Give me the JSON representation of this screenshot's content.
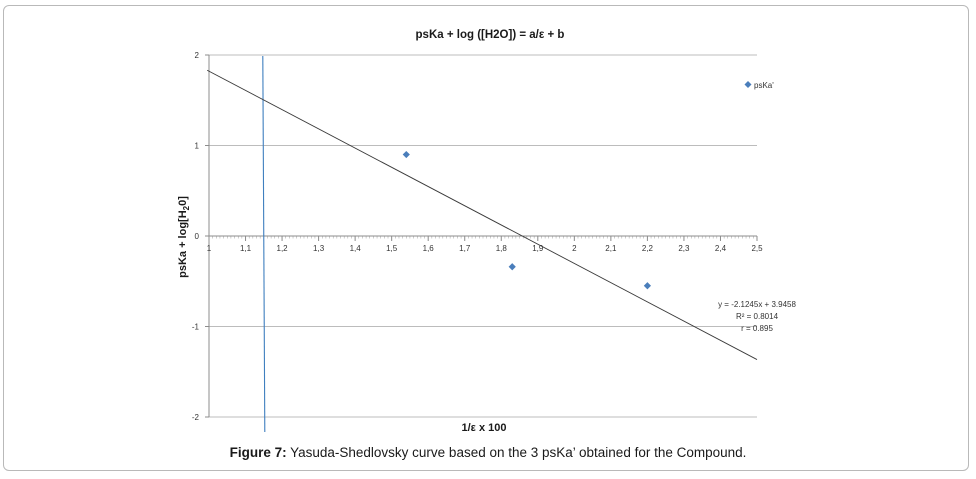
{
  "chart_data": {
    "type": "scatter",
    "title": "psKa + log ([H2O]) = a/ε + b",
    "xlabel": "1/ε x 100",
    "ylabel": "psKa + log[H",
    "ylabel_sub": "2",
    "ylabel_end": "0]",
    "xlim": [
      1,
      2.5
    ],
    "ylim": [
      -2,
      2
    ],
    "x_ticks": [
      1,
      1.1,
      1.2,
      1.3,
      1.4,
      1.5,
      1.6,
      1.7,
      1.8,
      1.9,
      2,
      2.1,
      2.2,
      2.3,
      2.4,
      2.5
    ],
    "x_tick_labels": [
      "1",
      "1,1",
      "1,2",
      "1,3",
      "1,4",
      "1,5",
      "1,6",
      "1,7",
      "1,8",
      "1,9",
      "2",
      "2,1",
      "2,2",
      "2,3",
      "2,4",
      "2,5"
    ],
    "y_ticks": [
      -2,
      -1,
      0,
      1,
      2
    ],
    "y_tick_labels": [
      "-2",
      "-1",
      "0",
      "1",
      "2"
    ],
    "grid": true,
    "legend_position": "top-right",
    "series": [
      {
        "name": "psKa'",
        "color": "#4a7ebb",
        "marker": "diamond",
        "points": [
          {
            "x": 1.54,
            "y": 0.9
          },
          {
            "x": 1.83,
            "y": -0.34
          },
          {
            "x": 2.2,
            "y": -0.55
          }
        ]
      }
    ],
    "trendline": {
      "slope": -2.1245,
      "intercept": 3.9458,
      "color": "#3a3a3a",
      "equation_label": "y = -2.1245x + 3.9458",
      "r2_label": "R² = 0.8014",
      "r_label": "r = 0.895"
    },
    "vertical_line": {
      "x": 1.15,
      "color": "#3f7fbf"
    }
  },
  "caption": {
    "label": "Figure 7:",
    "text": " Yasuda-Shedlovsky curve based on the 3 psKa’ obtained for the Compound."
  }
}
